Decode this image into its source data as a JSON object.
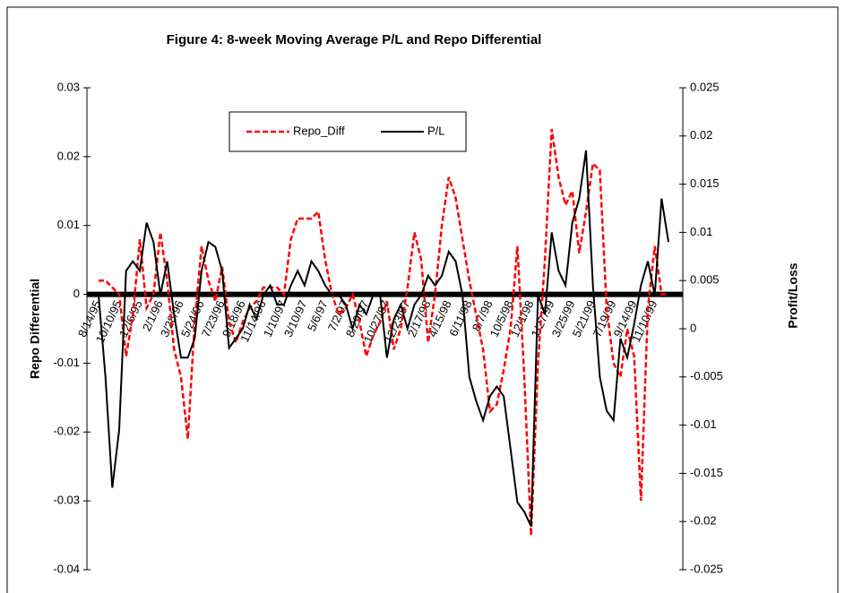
{
  "chart_data": {
    "type": "line",
    "title": "Figure 4: 8-week Moving Average P/L and Repo Differential",
    "y_label": "Repo Differential",
    "y2_label": "Profit/Loss",
    "categories": [
      "8/14/95",
      null,
      null,
      "10/10/95",
      null,
      null,
      "12/6/95",
      null,
      null,
      "2/1/96",
      null,
      null,
      "3/28/96",
      null,
      null,
      "5/24/96",
      null,
      null,
      "7/23/96",
      null,
      null,
      "9/18/96",
      null,
      null,
      "11/14/96",
      null,
      null,
      "1/10/97",
      null,
      null,
      "3/10/97",
      null,
      null,
      "5/6/97",
      null,
      null,
      "7/2/97",
      null,
      null,
      "8/29/97",
      null,
      null,
      "10/27/97",
      null,
      null,
      "12/23/97",
      null,
      null,
      "2/17/98",
      null,
      null,
      "4/15/98",
      null,
      null,
      "6/11/98",
      null,
      null,
      "8/7/98",
      null,
      null,
      "10/5/98",
      null,
      null,
      "12/1/98",
      null,
      null,
      "1/27/99",
      null,
      null,
      "3/25/99",
      null,
      null,
      "5/21/99",
      null,
      null,
      "7/19/99",
      null,
      null,
      "9/14/99",
      null,
      null,
      "11/10/99",
      null,
      null
    ],
    "series": [
      {
        "name": "Repo_Diff",
        "color": "#ff0000",
        "dashed": true,
        "values": [
          0.002,
          0.002,
          0.001,
          0.0,
          -0.009,
          -0.003,
          0.008,
          -0.002,
          0.0,
          0.009,
          0.002,
          -0.008,
          -0.012,
          -0.021,
          -0.004,
          0.007,
          0.002,
          -0.001,
          0.004,
          -0.004,
          -0.007,
          -0.004,
          -0.002,
          -0.001,
          0.001,
          0.001,
          0.001,
          0.0,
          0.008,
          0.011,
          0.011,
          0.011,
          0.012,
          0.005,
          0.0,
          -0.003,
          -0.002,
          0.0,
          -0.004,
          -0.009,
          -0.006,
          -0.004,
          -0.001,
          -0.008,
          -0.005,
          0.001,
          0.009,
          0.005,
          -0.007,
          0.0,
          0.01,
          0.017,
          0.014,
          0.008,
          0.002,
          -0.003,
          -0.008,
          -0.017,
          -0.016,
          -0.011,
          -0.005,
          0.007,
          -0.012,
          -0.035,
          -0.01,
          0.005,
          0.024,
          0.017,
          0.013,
          0.015,
          0.006,
          0.012,
          0.019,
          0.018,
          -0.002,
          -0.01,
          -0.012,
          -0.005,
          -0.009,
          -0.03,
          -0.002,
          0.007,
          0.0,
          0.0
        ]
      },
      {
        "name": "P/L",
        "color": "#000000",
        "dashed": false,
        "axis": "y2",
        "values": [
          0.0035,
          -0.005,
          -0.0165,
          -0.0105,
          0.006,
          0.007,
          0.006,
          0.011,
          0.009,
          0.0035,
          0.007,
          0.0015,
          -0.003,
          -0.003,
          -0.001,
          0.006,
          0.009,
          0.0085,
          0.006,
          -0.002,
          -0.001,
          0.0,
          0.0025,
          0.001,
          0.0035,
          0.0045,
          0.0025,
          0.0025,
          0.0045,
          0.006,
          0.0045,
          0.007,
          0.006,
          0.0045,
          0.0035,
          0.0035,
          0.0025,
          0.0,
          0.0025,
          0.0015,
          0.0035,
          0.0035,
          -0.003,
          0.001,
          0.0025,
          0.0,
          0.0025,
          0.0035,
          0.0055,
          0.0045,
          0.0055,
          0.008,
          0.007,
          0.0035,
          -0.005,
          -0.0075,
          -0.0095,
          -0.007,
          -0.006,
          -0.007,
          -0.0125,
          -0.018,
          -0.019,
          -0.0205,
          0.0035,
          0.0015,
          0.01,
          0.006,
          0.0045,
          0.011,
          0.0135,
          0.0185,
          0.0045,
          -0.005,
          -0.0085,
          -0.0095,
          -0.001,
          -0.003,
          0.0005,
          0.0045,
          0.007,
          0.0035,
          0.0135,
          0.009
        ]
      }
    ],
    "ylim": [
      -0.04,
      0.03
    ],
    "yticks": [
      -0.04,
      -0.03,
      -0.02,
      -0.01,
      0,
      0.01,
      0.02,
      0.03
    ],
    "y2lim": [
      -0.025,
      0.025
    ],
    "y2ticks": [
      -0.025,
      -0.02,
      -0.015,
      -0.01,
      -0.005,
      0,
      0.005,
      0.01,
      0.015,
      0.02,
      0.025
    ]
  }
}
